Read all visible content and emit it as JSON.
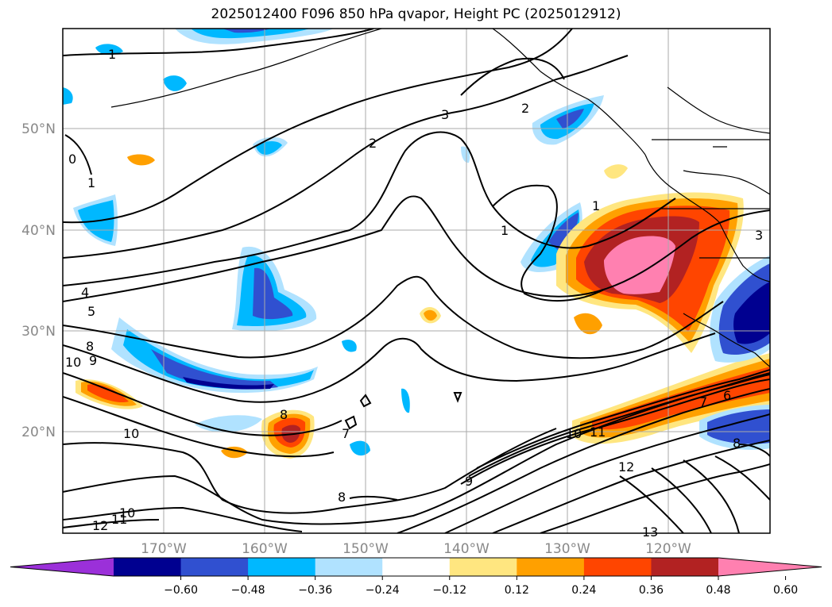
{
  "title": "2025012400 F096 850 hPa qvapor, Height PC (2025012912)",
  "longitude_labels": [
    "170°W",
    "160°W",
    "150°W",
    "140°W",
    "130°W",
    "120°W"
  ],
  "latitude_labels": [
    "50°N",
    "40°N",
    "30°N",
    "20°N"
  ],
  "contour_labels": [
    "1",
    "0",
    "1",
    "2",
    "3",
    "2",
    "1",
    "1",
    "3",
    "4",
    "5",
    "8",
    "9",
    "10",
    "8",
    "7",
    "10",
    "8",
    "9",
    "10",
    "11",
    "12",
    "10",
    "11",
    "12",
    "13",
    "7",
    "6",
    "8"
  ],
  "colorbar": {
    "tick_labels": [
      "−0.60",
      "−0.48",
      "−0.36",
      "−0.24",
      "−0.12",
      "0.12",
      "0.24",
      "0.36",
      "0.48",
      "0.60"
    ],
    "colors": [
      "#9b30d9",
      "#000090",
      "#3050d0",
      "#00b8ff",
      "#b0e2ff",
      "#ffffff",
      "#ffe680",
      "#ffa000",
      "#ff4500",
      "#b22222",
      "#ff80b0"
    ]
  }
}
